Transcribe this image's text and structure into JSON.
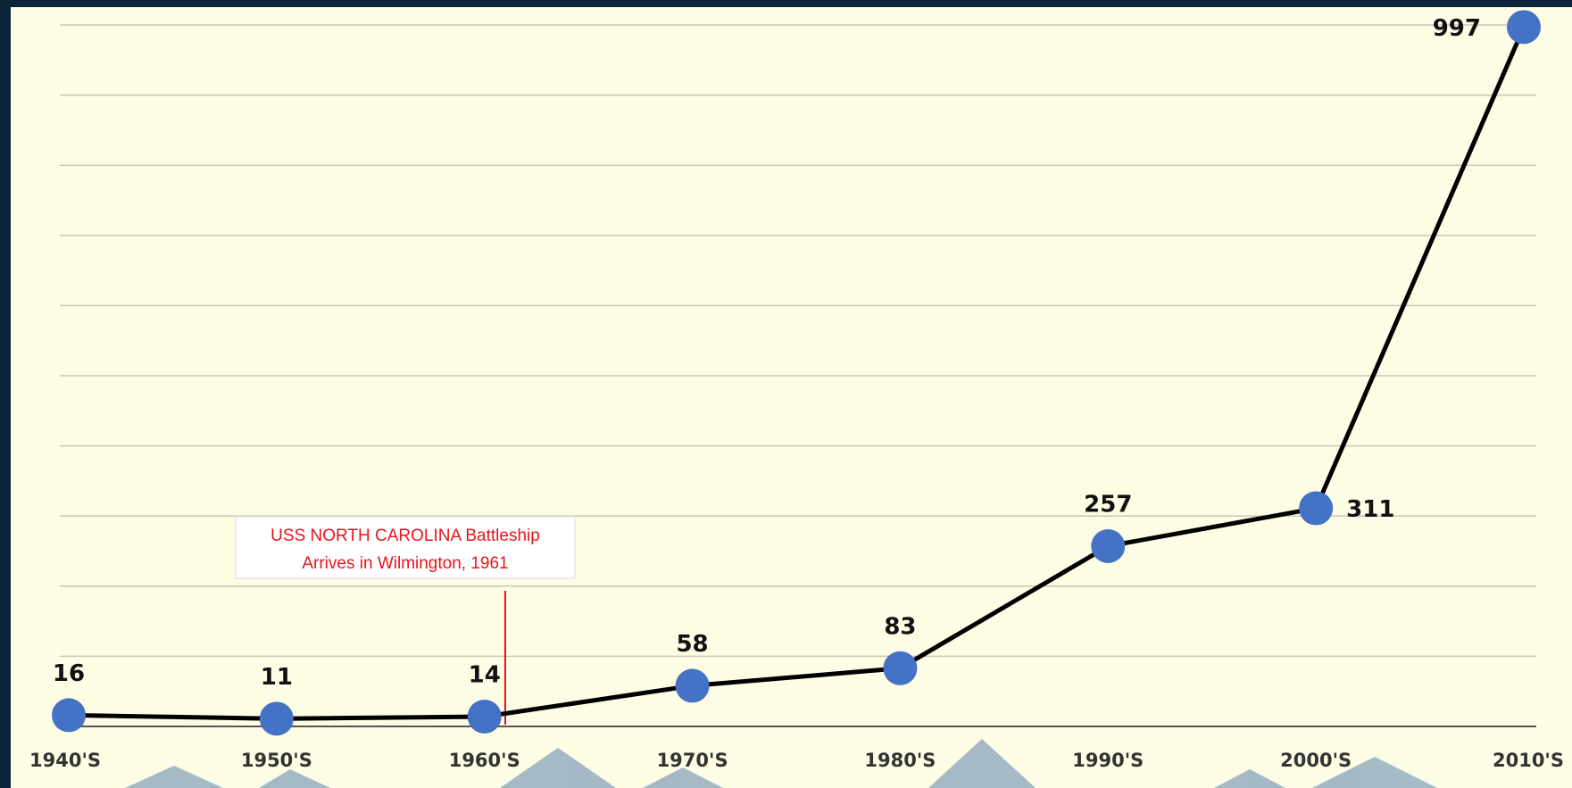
{
  "chart_data": {
    "type": "line",
    "categories": [
      "1940'S",
      "1950'S",
      "1960'S",
      "1970'S",
      "1980'S",
      "1990'S",
      "2000'S",
      "2010'S"
    ],
    "values": [
      16,
      11,
      14,
      58,
      83,
      257,
      311,
      997
    ],
    "line_color": "#000000",
    "marker_color": "#4472c4",
    "ylim": [
      0,
      1000
    ],
    "yticks": [
      0,
      100,
      200,
      300,
      400,
      500,
      600,
      700,
      800,
      900,
      1000
    ],
    "grid": true,
    "annotation": [
      "USS NORTH CAROLINA Battleship",
      "Arrives in Wilmington, 1961"
    ]
  }
}
